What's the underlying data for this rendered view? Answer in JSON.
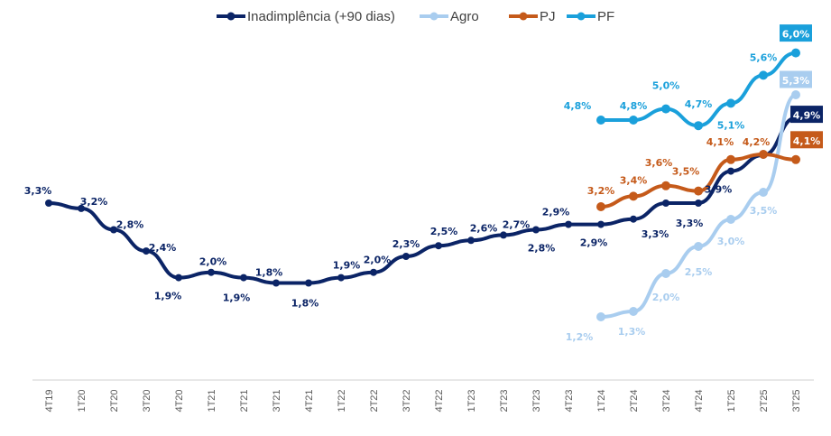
{
  "chart_data": {
    "type": "line",
    "title": "",
    "xlabel": "",
    "ylabel": "",
    "grid": false,
    "legend_position": "top",
    "categories": [
      "4T19",
      "1T20",
      "2T20",
      "3T20",
      "4T20",
      "1T21",
      "2T21",
      "3T21",
      "4T21",
      "1T22",
      "2T22",
      "3T22",
      "4T22",
      "1T23",
      "2T23",
      "3T23",
      "4T23",
      "1T24",
      "2T24",
      "3T24",
      "4T24",
      "1T25",
      "2T25",
      "3T25"
    ],
    "series": [
      {
        "name": "Inadimplência (+90 dias)",
        "color": "#0B2466",
        "start_index": 0,
        "values": [
          3.3,
          3.2,
          2.8,
          2.4,
          1.9,
          2.0,
          1.9,
          1.8,
          1.8,
          1.9,
          2.0,
          2.3,
          2.5,
          2.6,
          2.7,
          2.8,
          2.9,
          2.9,
          3.0,
          3.3,
          3.3,
          3.9,
          4.2,
          4.9
        ],
        "labels": [
          "3,3%",
          "3,2%",
          "2,8%",
          "2,4%",
          "1,9%",
          "2,0%",
          "1,9%",
          "1,8%",
          "1,8%",
          "1,9%",
          "2,0%",
          "2,3%",
          "2,5%",
          "2,6%",
          "2,7%",
          "2,8%",
          "2,9%",
          "2,9%",
          "",
          "3,3%",
          "3,3%",
          "3,9%",
          "",
          "4,9%"
        ],
        "highlight_last": true
      },
      {
        "name": "Agro",
        "color": "#A9CDEF",
        "start_index": 17,
        "values": [
          1.2,
          1.3,
          2.0,
          2.5,
          3.0,
          3.5,
          5.3
        ],
        "labels": [
          "1,2%",
          "1,3%",
          "2,0%",
          "2,5%",
          "3,0%",
          "3,5%",
          "5,3%"
        ],
        "highlight_last": true
      },
      {
        "name": "PJ",
        "color": "#C55A1A",
        "start_index": 17,
        "values": [
          3.2,
          3.4,
          3.6,
          3.5,
          4.1,
          4.2,
          4.1
        ],
        "labels": [
          "3,2%",
          "3,4%",
          "3,6%",
          "3,5%",
          "4,1%",
          "4,2%",
          "4,1%"
        ],
        "highlight_last": true
      },
      {
        "name": "PF",
        "color": "#1AA0DB",
        "start_index": 17,
        "values": [
          4.8,
          4.8,
          5.0,
          4.7,
          5.1,
          5.6,
          6.0
        ],
        "labels": [
          "4,8%",
          "4,8%",
          "5,0%",
          "4,7%",
          "5,1%",
          "5,6%",
          "6,0%"
        ],
        "highlight_last": true
      }
    ]
  }
}
